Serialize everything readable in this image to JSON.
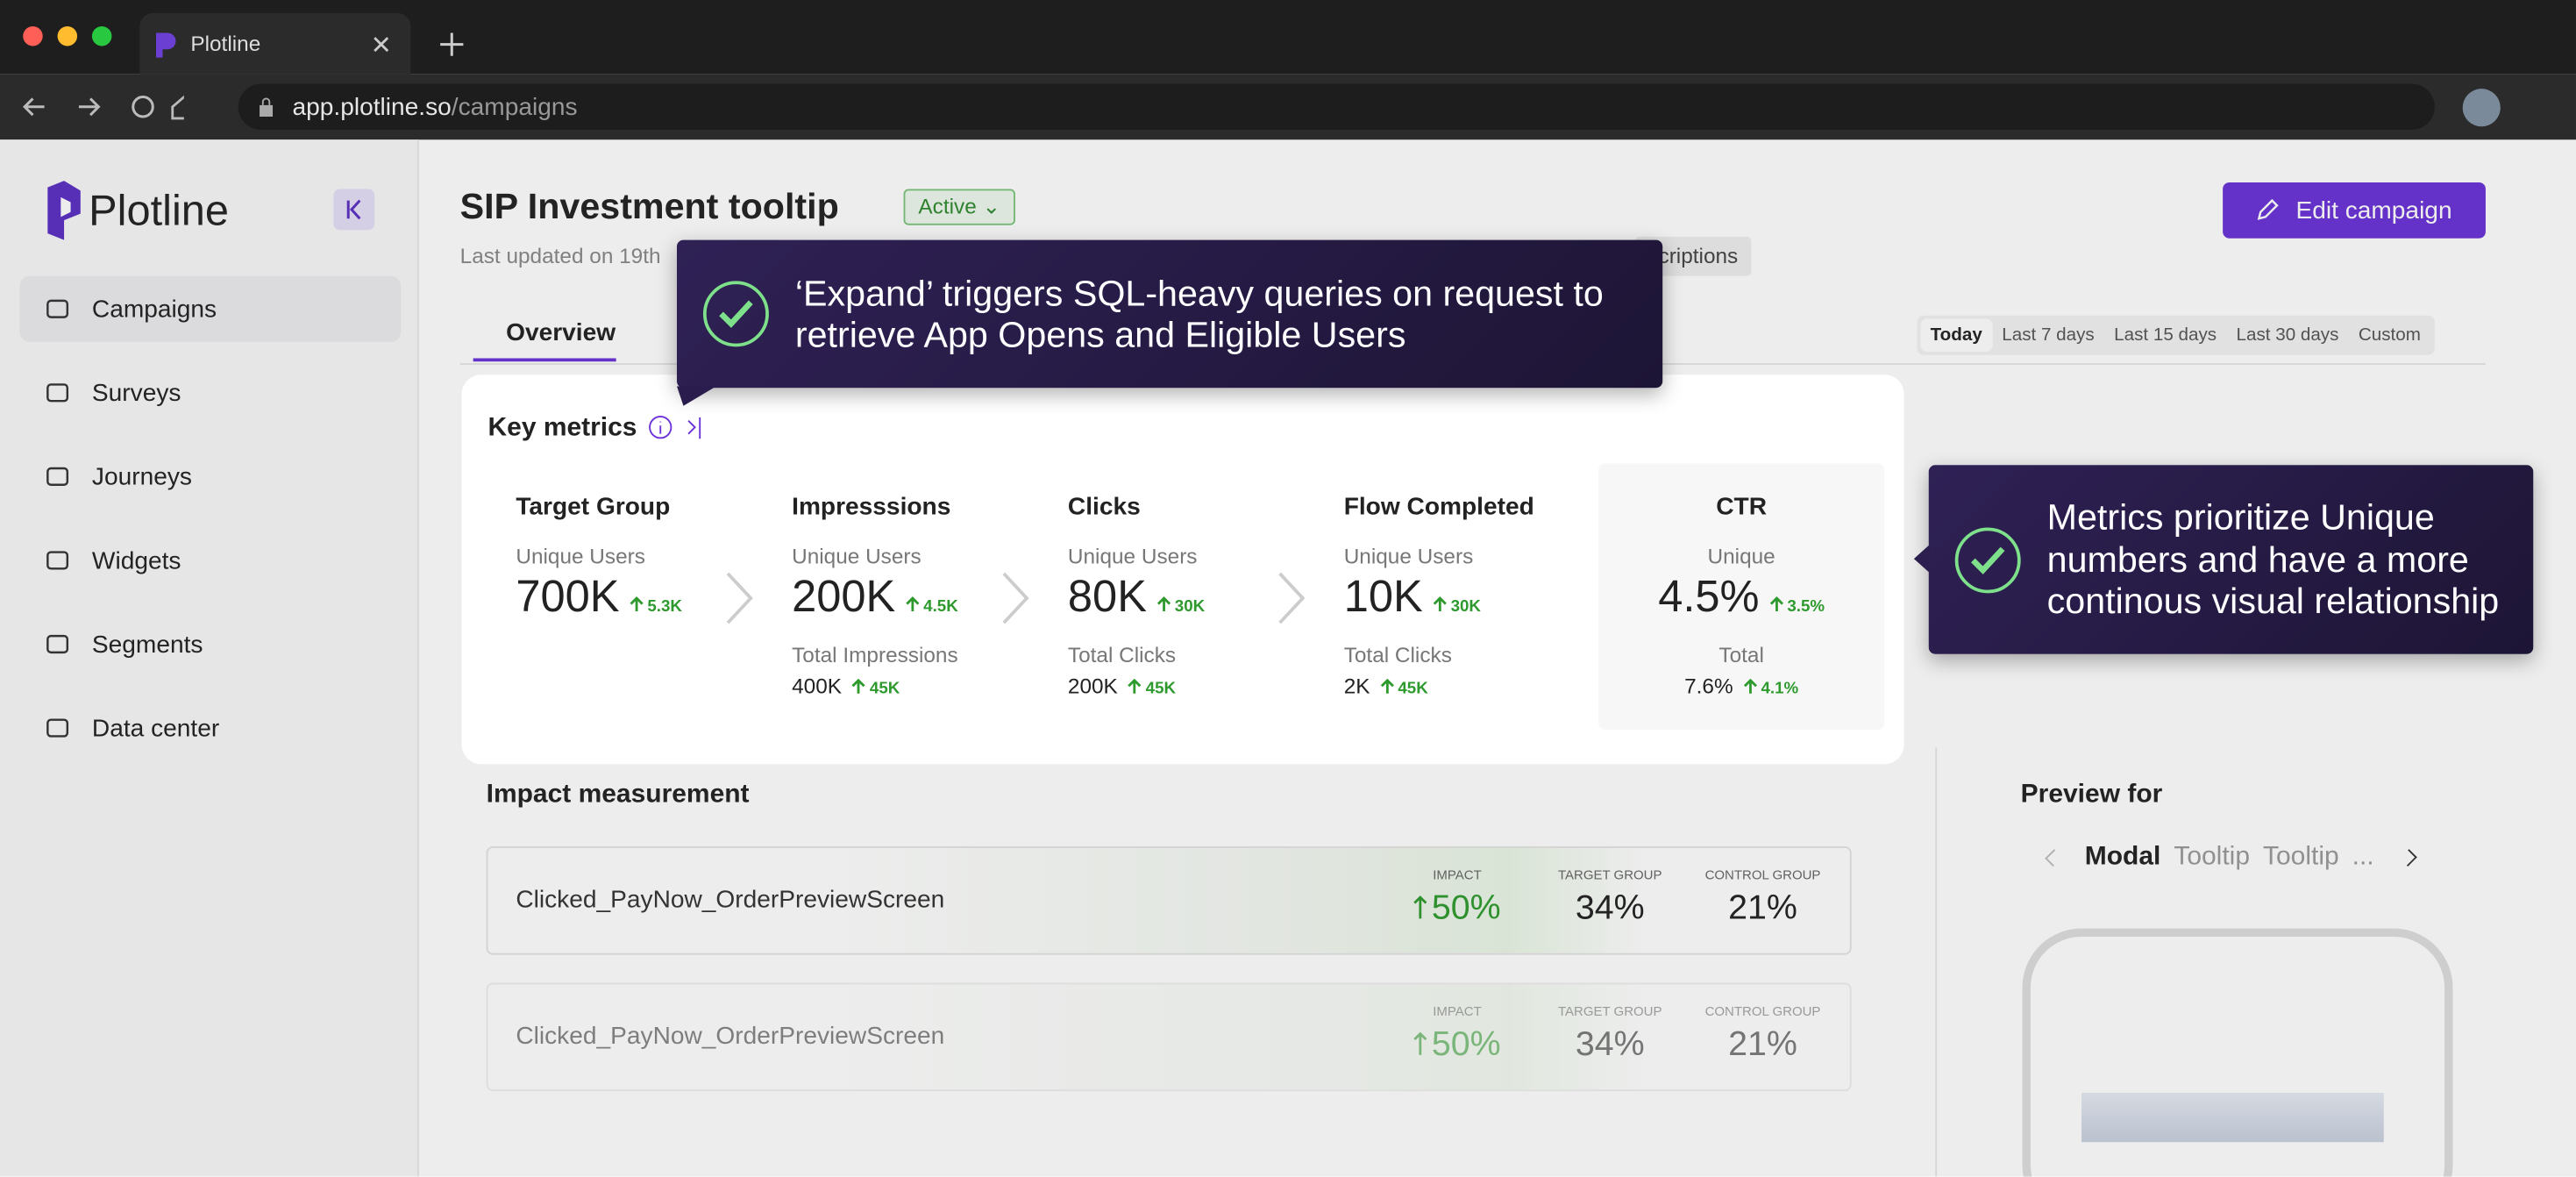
{
  "browser": {
    "tab_title": "Plotline",
    "url_host": "app.plotline.so",
    "url_path": "/campaigns"
  },
  "sidebar": {
    "brand": "Plotline",
    "nav": [
      "Campaigns",
      "Surveys",
      "Journeys",
      "Widgets",
      "Segments",
      "Data center"
    ]
  },
  "header": {
    "title": "SIP Investment tooltip",
    "status": "Active",
    "updated": "Last updated on 19th",
    "chip": "scriptions",
    "edit_button": "Edit campaign"
  },
  "tabs": [
    "Overview"
  ],
  "date_ranges": [
    "Today",
    "Last 7 days",
    "Last 15 days",
    "Last 30 days",
    "Custom"
  ],
  "key_metrics": {
    "title": "Key metrics",
    "metrics": [
      {
        "name": "Target Group",
        "primary_label": "Unique Users",
        "primary_value": "700K",
        "primary_delta": "5.3K"
      },
      {
        "name": "Impresssions",
        "primary_label": "Unique Users",
        "primary_value": "200K",
        "primary_delta": "4.5K",
        "secondary_label": "Total Impressions",
        "secondary_value": "400K",
        "secondary_delta": "45K"
      },
      {
        "name": "Clicks",
        "primary_label": "Unique Users",
        "primary_value": "80K",
        "primary_delta": "30K",
        "secondary_label": "Total Clicks",
        "secondary_value": "200K",
        "secondary_delta": "45K"
      },
      {
        "name": "Flow Completed",
        "primary_label": "Unique Users",
        "primary_value": "10K",
        "primary_delta": "30K",
        "secondary_label": "Total Clicks",
        "secondary_value": "2K",
        "secondary_delta": "45K"
      },
      {
        "name": "CTR",
        "primary_label": "Unique",
        "primary_value": "4.5%",
        "primary_delta": "3.5%",
        "secondary_label": "Total",
        "secondary_value": "7.6%",
        "secondary_delta": "4.1%"
      }
    ]
  },
  "impact": {
    "title": "Impact measurement",
    "columns": [
      "IMPACT",
      "TARGET GROUP",
      "CONTROL GROUP"
    ],
    "rows": [
      {
        "event": "Clicked_PayNow_OrderPreviewScreen",
        "impact": "50%",
        "target": "34%",
        "control": "21%"
      },
      {
        "event": "Clicked_PayNow_OrderPreviewScreen",
        "impact": "50%",
        "target": "34%",
        "control": "21%"
      }
    ]
  },
  "preview": {
    "title": "Preview for",
    "tabs": [
      "Modal",
      "Tooltip",
      "Tooltip",
      "..."
    ]
  },
  "callouts": [
    "‘Expand’ triggers SQL-heavy queries on request to retrieve App Opens and Eligible Users",
    "Metrics prioritize Unique numbers and have a more continous visual relationship"
  ]
}
